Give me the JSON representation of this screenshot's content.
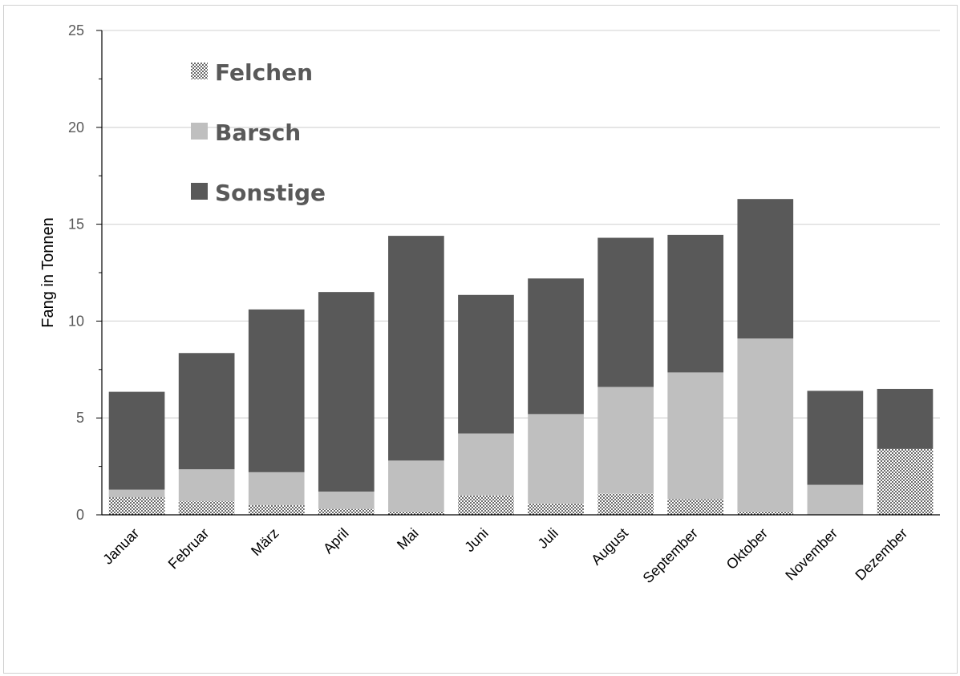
{
  "chart_data": {
    "type": "bar",
    "stacked": true,
    "categories": [
      "Januar",
      "Februar",
      "März",
      "April",
      "Mai",
      "Juni",
      "Juli",
      "August",
      "September",
      "Oktober",
      "November",
      "Dezember"
    ],
    "series": [
      {
        "name": "Felchen",
        "values": [
          0.9,
          0.7,
          0.5,
          0.3,
          0.2,
          1.0,
          0.6,
          1.1,
          0.8,
          0.2,
          0.0,
          3.4
        ],
        "color": "#ffffff",
        "pattern": "dots"
      },
      {
        "name": "Barsch",
        "values": [
          0.4,
          1.65,
          1.7,
          0.9,
          2.6,
          3.2,
          4.6,
          5.5,
          6.55,
          8.9,
          1.55,
          0.0
        ],
        "color": "#bfbfbf"
      },
      {
        "name": "Sonstige",
        "values": [
          5.05,
          6.0,
          8.4,
          10.3,
          11.6,
          7.15,
          7.0,
          7.7,
          7.1,
          7.2,
          4.85,
          3.1
        ],
        "color": "#595959"
      }
    ],
    "xlabel": "",
    "ylabel": "Fang in Tonnen",
    "ylim": [
      0,
      25
    ],
    "yticks": [
      "0",
      "5",
      "10",
      "15",
      "20",
      "25"
    ],
    "grid": true,
    "legend_position": "top-left"
  }
}
